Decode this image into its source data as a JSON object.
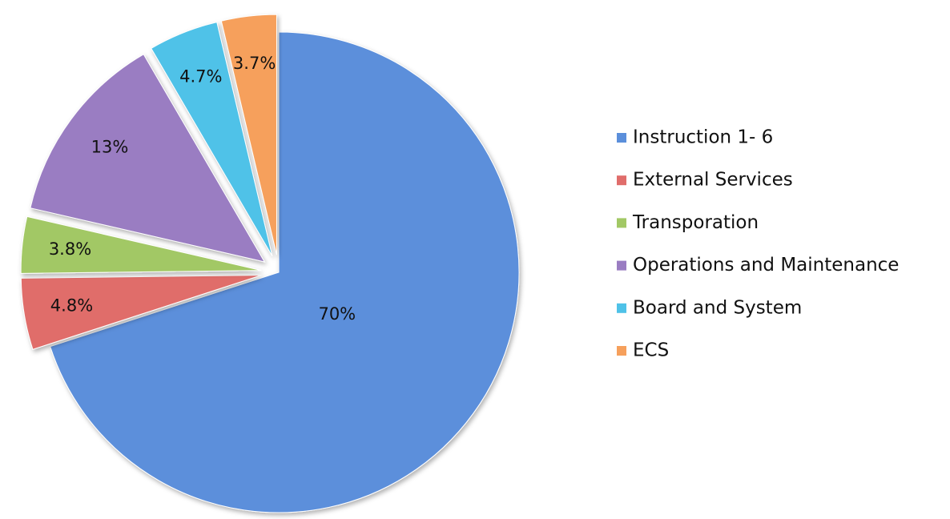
{
  "chart_data": {
    "type": "pie",
    "categories": [
      "Instruction 1- 6",
      "External Services",
      "Transporation",
      "Operations and Maintenance",
      "Board and System",
      "ECS"
    ],
    "values": [
      70,
      4.8,
      3.8,
      13,
      4.7,
      3.7
    ],
    "value_labels": [
      "70%",
      "4.8%",
      "3.8%",
      "13%",
      "4.7%",
      "3.7%"
    ],
    "colors": [
      "#5b8fdb",
      "#e06d6b",
      "#a2c865",
      "#9a7dc2",
      "#4fc2e8",
      "#f6a05c"
    ],
    "legend": "right"
  }
}
